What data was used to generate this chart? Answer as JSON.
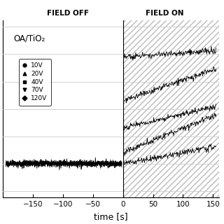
{
  "title_left": "FIELD OFF",
  "title_right": "FIELD ON",
  "xlabel": "time [s]",
  "label_text": "OA/TiO₂",
  "xlim": [
    -200,
    160
  ],
  "ylim_bottom": -2.5,
  "ylim_top": 10.5,
  "legend_entries": [
    "10V",
    "20V",
    "40V",
    "70V",
    "120V"
  ],
  "legend_markers": [
    "o",
    "^",
    "s",
    "v",
    "D"
  ],
  "background_color": "#ffffff",
  "hatch_pattern": "////",
  "hatch_color": "#bbbbbb",
  "grid_color": "#cccccc",
  "series": [
    {
      "label": "10V",
      "marker": "o",
      "y_off": 0.0,
      "y_on_start": 0.0,
      "slope_on": 0.008
    },
    {
      "label": "20V",
      "marker": "^",
      "y_off": 0.0,
      "y_on_start": 0.6,
      "slope_on": 0.018
    },
    {
      "label": "40V",
      "marker": "s",
      "y_off": 0.0,
      "y_on_start": 2.5,
      "slope_on": 0.01
    },
    {
      "label": "70V",
      "marker": "v",
      "y_off": 0.0,
      "y_on_start": 4.5,
      "slope_on": 0.015
    },
    {
      "label": "120V",
      "marker": "D",
      "y_off": 0.0,
      "y_on_start": 7.5,
      "slope_on": 0.003
    }
  ]
}
